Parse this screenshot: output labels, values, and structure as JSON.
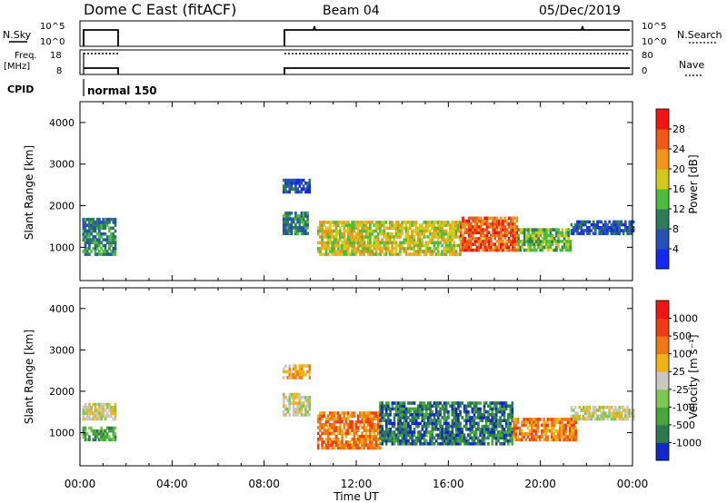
{
  "header": {
    "title": "Dome C East (fitACF)",
    "beam": "Beam 04",
    "date": "05/Dec/2019"
  },
  "summary": {
    "nsky_label": "N.Sky",
    "nsky_ticks": [
      "10^5",
      "10^0"
    ],
    "freq_label": "Freq.",
    "freq_unit": "[MHz]",
    "freq_ticks": [
      "18",
      "8"
    ],
    "cpid_label": "CPID",
    "nsearch_label": "N.Search",
    "nave_label": "Nave",
    "nave_ticks": [
      "80",
      "0"
    ],
    "cpid_mode": "normal 150"
  },
  "chart_data": [
    {
      "type": "heatmap",
      "name": "power",
      "ylabel": "Slant Range [km]",
      "xlabel": "",
      "xlim": [
        "00:00",
        "24:00"
      ],
      "ylim": [
        200,
        4500
      ],
      "yticks": [
        1000,
        2000,
        3000,
        4000
      ],
      "colorbar": {
        "label": "Power [dB]",
        "ticks": [
          "4",
          "8",
          "12",
          "16",
          "20",
          "24",
          "28"
        ],
        "colors": [
          "#1428f0",
          "#2450b8",
          "#2e7b5a",
          "#4cbc3c",
          "#d4c81c",
          "#f0961c",
          "#f05a14",
          "#f01414"
        ]
      },
      "regions": [
        {
          "t_start": 0.1,
          "t_end": 1.5,
          "r_start": 800,
          "r_end": 1700,
          "level": 2
        },
        {
          "t_start": 8.8,
          "t_end": 9.9,
          "r_start": 1300,
          "r_end": 1800,
          "level": 2
        },
        {
          "t_start": 8.8,
          "t_end": 10.0,
          "r_start": 2300,
          "r_end": 2600,
          "level": 1
        },
        {
          "t_start": 10.3,
          "t_end": 16.5,
          "r_start": 800,
          "r_end": 1600,
          "level": 4
        },
        {
          "t_start": 16.5,
          "t_end": 19.0,
          "r_start": 900,
          "r_end": 1700,
          "level": 6
        },
        {
          "t_start": 19.0,
          "t_end": 21.3,
          "r_start": 900,
          "r_end": 1400,
          "level": 3
        },
        {
          "t_start": 21.3,
          "t_end": 24.0,
          "r_start": 1300,
          "r_end": 1600,
          "level": 1
        }
      ]
    },
    {
      "type": "heatmap",
      "name": "velocity",
      "ylabel": "Slant Range [km]",
      "xlabel": "Time UT",
      "xlim": [
        "00:00",
        "24:00"
      ],
      "ylim": [
        200,
        4500
      ],
      "yticks": [
        1000,
        2000,
        3000,
        4000
      ],
      "xticks": [
        "00:00",
        "04:00",
        "08:00",
        "12:00",
        "16:00",
        "20:00",
        "00:00"
      ],
      "colorbar": {
        "label": "Velocity [m s⁻¹]",
        "ticks": [
          "1000",
          "500",
          "100",
          "25",
          "-25",
          "-100",
          "-500",
          "-1000"
        ],
        "colors": [
          "#1428c8",
          "#2c7850",
          "#46a83c",
          "#7cc850",
          "#c8c8c0",
          "#f0b414",
          "#f07814",
          "#f03c14",
          "#f01414"
        ]
      },
      "regions": [
        {
          "t_start": 0.1,
          "t_end": 1.5,
          "r_start": 1300,
          "r_end": 1700,
          "level": 4
        },
        {
          "t_start": 0.1,
          "t_end": 1.5,
          "r_start": 800,
          "r_end": 1100,
          "level": 2
        },
        {
          "t_start": 8.8,
          "t_end": 10.0,
          "r_start": 1400,
          "r_end": 1900,
          "level": 4
        },
        {
          "t_start": 8.8,
          "t_end": 10.0,
          "r_start": 2300,
          "r_end": 2600,
          "level": 5
        },
        {
          "t_start": 10.3,
          "t_end": 13.0,
          "r_start": 600,
          "r_end": 1500,
          "level": 6
        },
        {
          "t_start": 13.0,
          "t_end": 18.8,
          "r_start": 700,
          "r_end": 1700,
          "level": 1
        },
        {
          "t_start": 18.8,
          "t_end": 21.5,
          "r_start": 800,
          "r_end": 1300,
          "level": 6
        },
        {
          "t_start": 21.3,
          "t_end": 24.0,
          "r_start": 1300,
          "r_end": 1600,
          "level": 4
        }
      ]
    }
  ]
}
